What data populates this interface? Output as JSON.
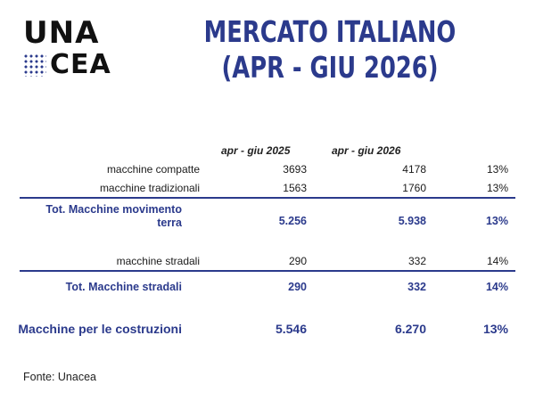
{
  "logo": {
    "line1": "UNA",
    "line2": "CEA"
  },
  "title": {
    "line1": "MERCATO ITALIANO",
    "line2": "(APR - GIU 2026)"
  },
  "columns": {
    "period1": "apr - giu 2025",
    "period2": "apr - giu 2026"
  },
  "rows": {
    "compatte": {
      "label": "macchine compatte",
      "v1": "3693",
      "v2": "4178",
      "pct": "13%"
    },
    "tradizionali": {
      "label": "macchine tradizionali",
      "v1": "1563",
      "v2": "1760",
      "pct": "13%"
    },
    "tot_movimento": {
      "label_line1": "Tot. Macchine movimento",
      "label_line2": "terra",
      "v1": "5.256",
      "v2": "5.938",
      "pct": "13%"
    },
    "stradali": {
      "label": "macchine stradali",
      "v1": "290",
      "v2": "332",
      "pct": "14%"
    },
    "tot_stradali": {
      "label": "Tot. Macchine stradali",
      "v1": "290",
      "v2": "332",
      "pct": "14%"
    },
    "costruzioni": {
      "label": "Macchine per le costruzioni",
      "v1": "5.546",
      "v2": "6.270",
      "pct": "13%"
    }
  },
  "source": "Fonte: Unacea",
  "colors": {
    "accent": "#2b3a8c"
  }
}
